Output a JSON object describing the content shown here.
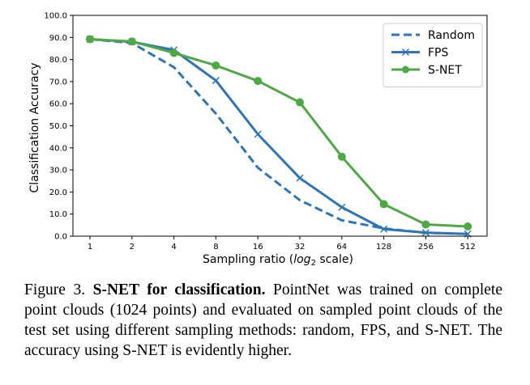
{
  "chart_data": {
    "type": "line",
    "x": [
      "1",
      "2",
      "4",
      "8",
      "16",
      "32",
      "64",
      "128",
      "256",
      "512"
    ],
    "xlabel_prefix": "Sampling ratio (",
    "xlabel_math": "log",
    "xlabel_sub": "2",
    "xlabel_suffix": " scale)",
    "ylabel": "Classification Accuracy",
    "ylim": [
      0,
      100
    ],
    "yticks": [
      "0.0",
      "10.0",
      "20.0",
      "30.0",
      "40.0",
      "50.0",
      "60.0",
      "70.0",
      "80.0",
      "90.0",
      "100.0"
    ],
    "x_scale": "log2",
    "grid": false,
    "legend_position": "top-right",
    "series": [
      {
        "name": "Random",
        "color": "#2e75b6",
        "style": "dashed",
        "marker": "none",
        "values": [
          89.2,
          87.5,
          76.5,
          55.5,
          31.0,
          16.3,
          7.2,
          3.5,
          1.5,
          1.0
        ]
      },
      {
        "name": "FPS",
        "color": "#2e75b6",
        "style": "solid",
        "marker": "x",
        "values": [
          89.2,
          88.0,
          84.3,
          70.5,
          46.2,
          26.3,
          13.1,
          3.2,
          1.6,
          1.0
        ]
      },
      {
        "name": "S-NET",
        "color": "#4ea844",
        "style": "solid",
        "marker": "circle",
        "values": [
          89.2,
          88.2,
          83.0,
          77.3,
          70.3,
          60.6,
          36.0,
          14.5,
          5.3,
          4.4
        ]
      }
    ]
  },
  "caption": {
    "figure_label": "Figure 3.",
    "title": "S-NET for classification.",
    "text": "PointNet was trained on complete point clouds (1024 points) and evaluated on sampled point clouds of the test set using different sampling methods: random, FPS, and S-NET. The accuracy using S-NET is evidently higher."
  }
}
